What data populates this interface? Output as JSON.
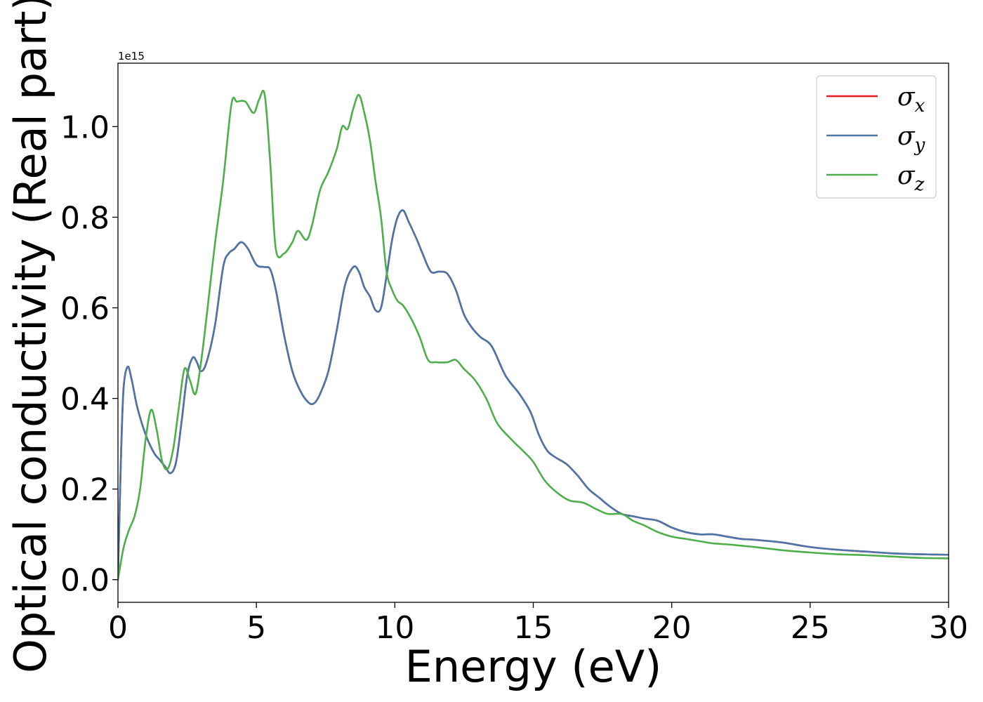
{
  "chart_data": {
    "type": "line",
    "title": "",
    "xlabel": "Energy (eV)",
    "ylabel": "Optical conductivity (Real part)",
    "xlim": [
      0,
      30
    ],
    "ylim": [
      -0.05,
      1.14
    ],
    "y_offset_label": "1e15",
    "x_ticks": [
      0,
      5,
      10,
      15,
      20,
      25,
      30
    ],
    "x_tick_labels": [
      "0",
      "5",
      "10",
      "15",
      "20",
      "25",
      "30"
    ],
    "y_ticks": [
      0.0,
      0.2,
      0.4,
      0.6,
      0.8,
      1.0
    ],
    "y_tick_labels": [
      "0.0",
      "0.2",
      "0.4",
      "0.6",
      "0.8",
      "1.0"
    ],
    "grid": false,
    "legend_position": "top-right",
    "series": [
      {
        "name": "σx",
        "symbol": "σ",
        "subscript": "x",
        "color": "#e41a1c",
        "x": [
          0,
          0.1,
          0.2,
          0.35,
          0.5,
          0.7,
          1.0,
          1.3,
          1.5,
          1.7,
          1.9,
          2.1,
          2.3,
          2.5,
          2.7,
          2.85,
          3.0,
          3.2,
          3.5,
          3.8,
          4.0,
          4.2,
          4.45,
          4.7,
          5.0,
          5.3,
          5.5,
          5.7,
          6.0,
          6.3,
          6.6,
          6.9,
          7.1,
          7.3,
          7.6,
          7.9,
          8.2,
          8.5,
          8.7,
          8.9,
          9.1,
          9.3,
          9.5,
          9.7,
          9.9,
          10.1,
          10.3,
          10.5,
          10.8,
          11.0,
          11.3,
          11.6,
          11.9,
          12.2,
          12.5,
          12.8,
          13.1,
          13.5,
          14.0,
          14.5,
          14.9,
          15.2,
          15.5,
          15.8,
          16.2,
          16.6,
          17.0,
          17.4,
          17.8,
          18.2,
          18.6,
          19.0,
          19.5,
          20.0,
          20.5,
          21.0,
          21.5,
          22.0,
          22.5,
          23.0,
          24.0,
          25.0,
          26.0,
          27.0,
          28.0,
          29.0,
          30.0
        ],
        "values": [
          0.0,
          0.25,
          0.42,
          0.47,
          0.44,
          0.38,
          0.32,
          0.28,
          0.265,
          0.25,
          0.235,
          0.26,
          0.35,
          0.45,
          0.49,
          0.48,
          0.46,
          0.48,
          0.56,
          0.69,
          0.72,
          0.73,
          0.745,
          0.73,
          0.695,
          0.69,
          0.685,
          0.64,
          0.54,
          0.46,
          0.415,
          0.39,
          0.39,
          0.41,
          0.46,
          0.55,
          0.65,
          0.69,
          0.68,
          0.645,
          0.625,
          0.595,
          0.6,
          0.67,
          0.75,
          0.8,
          0.815,
          0.79,
          0.75,
          0.72,
          0.68,
          0.68,
          0.675,
          0.64,
          0.585,
          0.555,
          0.535,
          0.515,
          0.45,
          0.41,
          0.37,
          0.32,
          0.285,
          0.27,
          0.255,
          0.23,
          0.2,
          0.18,
          0.16,
          0.145,
          0.14,
          0.135,
          0.13,
          0.115,
          0.105,
          0.1,
          0.1,
          0.095,
          0.09,
          0.088,
          0.082,
          0.072,
          0.066,
          0.062,
          0.058,
          0.056,
          0.055
        ]
      },
      {
        "name": "σy",
        "symbol": "σ",
        "subscript": "y",
        "color": "#4a76aa",
        "x": [
          0,
          0.1,
          0.2,
          0.35,
          0.5,
          0.7,
          1.0,
          1.3,
          1.5,
          1.7,
          1.9,
          2.1,
          2.3,
          2.5,
          2.7,
          2.85,
          3.0,
          3.2,
          3.5,
          3.8,
          4.0,
          4.2,
          4.45,
          4.7,
          5.0,
          5.3,
          5.5,
          5.7,
          6.0,
          6.3,
          6.6,
          6.9,
          7.1,
          7.3,
          7.6,
          7.9,
          8.2,
          8.5,
          8.7,
          8.9,
          9.1,
          9.3,
          9.5,
          9.7,
          9.9,
          10.1,
          10.3,
          10.5,
          10.8,
          11.0,
          11.3,
          11.6,
          11.9,
          12.2,
          12.5,
          12.8,
          13.1,
          13.5,
          14.0,
          14.5,
          14.9,
          15.2,
          15.5,
          15.8,
          16.2,
          16.6,
          17.0,
          17.4,
          17.8,
          18.2,
          18.6,
          19.0,
          19.5,
          20.0,
          20.5,
          21.0,
          21.5,
          22.0,
          22.5,
          23.0,
          24.0,
          25.0,
          26.0,
          27.0,
          28.0,
          29.0,
          30.0
        ],
        "values": [
          0.0,
          0.25,
          0.42,
          0.47,
          0.44,
          0.38,
          0.32,
          0.28,
          0.265,
          0.25,
          0.235,
          0.26,
          0.35,
          0.45,
          0.49,
          0.48,
          0.46,
          0.48,
          0.56,
          0.69,
          0.72,
          0.73,
          0.745,
          0.73,
          0.695,
          0.69,
          0.685,
          0.64,
          0.54,
          0.46,
          0.415,
          0.39,
          0.39,
          0.41,
          0.46,
          0.55,
          0.65,
          0.69,
          0.68,
          0.645,
          0.625,
          0.595,
          0.6,
          0.67,
          0.75,
          0.8,
          0.815,
          0.79,
          0.75,
          0.72,
          0.68,
          0.68,
          0.675,
          0.64,
          0.585,
          0.555,
          0.535,
          0.515,
          0.45,
          0.41,
          0.37,
          0.32,
          0.285,
          0.27,
          0.255,
          0.23,
          0.2,
          0.18,
          0.16,
          0.145,
          0.14,
          0.135,
          0.13,
          0.115,
          0.105,
          0.1,
          0.1,
          0.095,
          0.09,
          0.088,
          0.082,
          0.072,
          0.066,
          0.062,
          0.058,
          0.056,
          0.055
        ]
      },
      {
        "name": "σz",
        "symbol": "σ",
        "subscript": "z",
        "color": "#4daf4a",
        "x": [
          0,
          0.2,
          0.4,
          0.6,
          0.8,
          1.0,
          1.2,
          1.4,
          1.6,
          1.8,
          2.0,
          2.2,
          2.4,
          2.6,
          2.8,
          3.0,
          3.2,
          3.5,
          3.8,
          4.1,
          4.3,
          4.6,
          4.9,
          5.1,
          5.3,
          5.5,
          5.7,
          6.0,
          6.3,
          6.5,
          6.8,
          7.0,
          7.3,
          7.6,
          7.9,
          8.1,
          8.3,
          8.5,
          8.7,
          8.9,
          9.1,
          9.3,
          9.5,
          9.7,
          9.9,
          10.1,
          10.3,
          10.6,
          10.9,
          11.2,
          11.5,
          11.9,
          12.2,
          12.5,
          12.9,
          13.3,
          13.7,
          14.2,
          14.7,
          15.0,
          15.4,
          15.8,
          16.3,
          16.8,
          17.3,
          17.7,
          18.2,
          18.6,
          19.0,
          19.5,
          20.0,
          20.5,
          21.0,
          21.5,
          22.0,
          22.5,
          23.0,
          24.0,
          25.0,
          26.0,
          27.0,
          28.0,
          29.0,
          30.0
        ],
        "values": [
          0.0,
          0.07,
          0.11,
          0.14,
          0.2,
          0.31,
          0.375,
          0.33,
          0.26,
          0.245,
          0.29,
          0.38,
          0.465,
          0.44,
          0.41,
          0.48,
          0.58,
          0.74,
          0.88,
          1.05,
          1.055,
          1.055,
          1.03,
          1.06,
          1.07,
          0.92,
          0.73,
          0.72,
          0.745,
          0.77,
          0.75,
          0.78,
          0.86,
          0.9,
          0.95,
          1.0,
          0.995,
          1.04,
          1.07,
          1.03,
          0.97,
          0.88,
          0.8,
          0.68,
          0.64,
          0.615,
          0.605,
          0.575,
          0.535,
          0.485,
          0.48,
          0.48,
          0.485,
          0.465,
          0.44,
          0.4,
          0.345,
          0.31,
          0.28,
          0.26,
          0.22,
          0.195,
          0.175,
          0.17,
          0.155,
          0.145,
          0.145,
          0.13,
          0.12,
          0.105,
          0.095,
          0.09,
          0.085,
          0.08,
          0.078,
          0.075,
          0.072,
          0.065,
          0.06,
          0.056,
          0.054,
          0.051,
          0.048,
          0.047
        ]
      }
    ]
  }
}
